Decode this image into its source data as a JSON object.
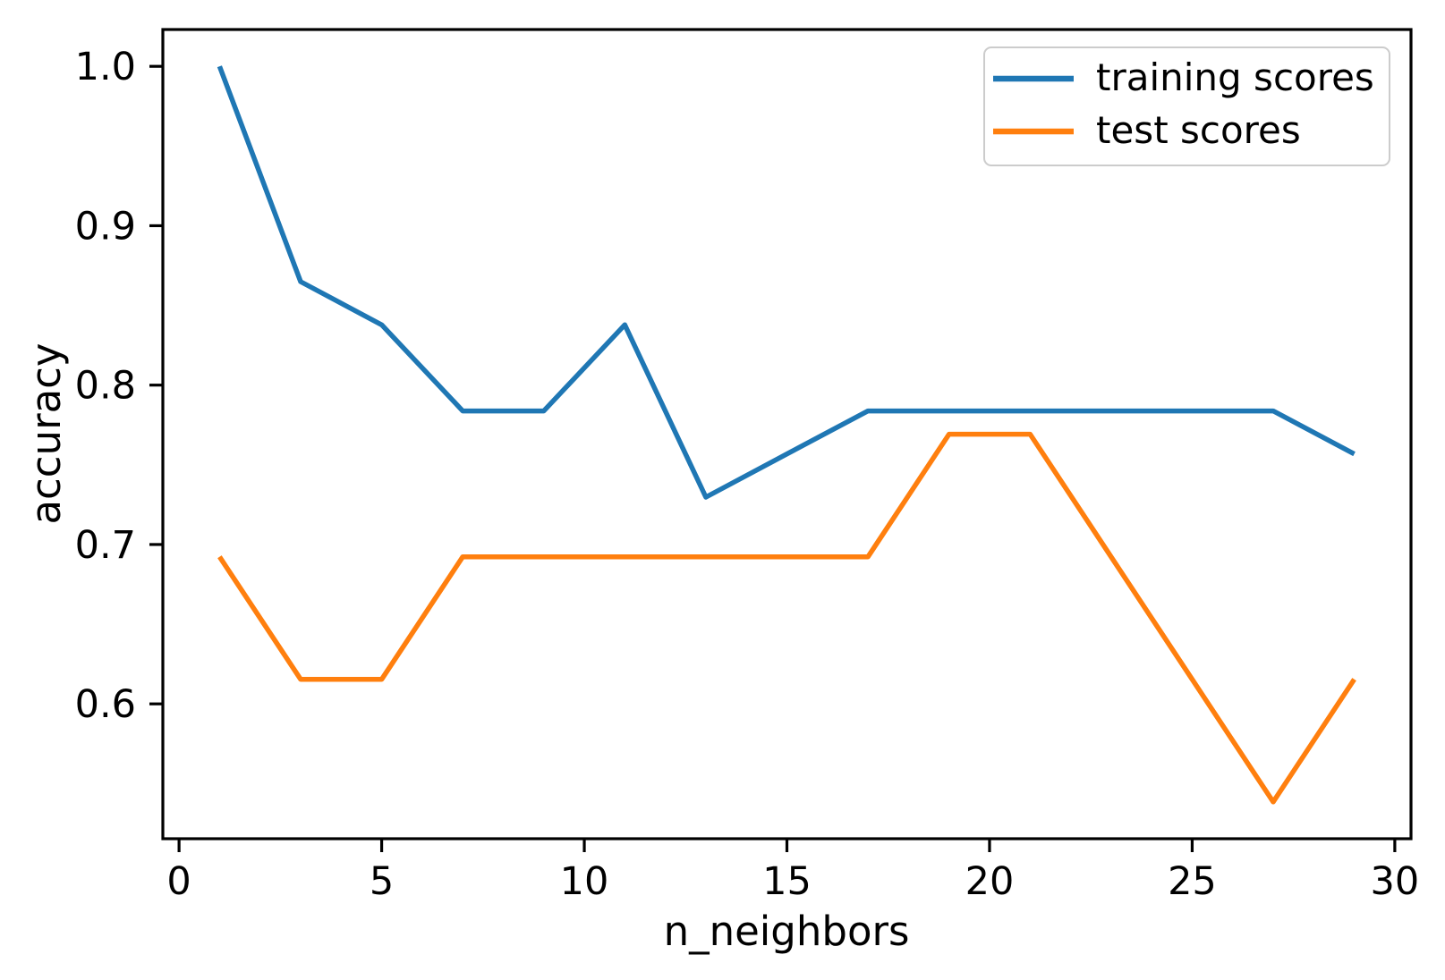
{
  "figure": {
    "background_color": "#ffffff",
    "spine_color": "#000000",
    "text_color": "#000000"
  },
  "chart_data": {
    "type": "line",
    "title": "",
    "xlabel": "n_neighbors",
    "ylabel": "accuracy",
    "x": [
      1,
      3,
      5,
      7,
      9,
      11,
      13,
      15,
      17,
      19,
      21,
      23,
      25,
      27,
      29
    ],
    "series": [
      {
        "name": "training scores",
        "color": "#1f77b4",
        "values": [
          1.0,
          0.8649,
          0.8378,
          0.7838,
          0.7838,
          0.8378,
          0.7297,
          0.7568,
          0.7838,
          0.7838,
          0.7838,
          0.7838,
          0.7838,
          0.7838,
          0.7568
        ]
      },
      {
        "name": "test scores",
        "color": "#ff7f0e",
        "values": [
          0.6923,
          0.6154,
          0.6154,
          0.6923,
          0.6923,
          0.6923,
          0.6923,
          0.6923,
          0.6923,
          0.7692,
          0.7692,
          0.6923,
          0.6154,
          0.5385,
          0.6154
        ]
      }
    ],
    "xlim": [
      -0.4,
      30.4
    ],
    "ylim": [
      0.5154,
      1.0231
    ],
    "xticks": [
      0,
      5,
      10,
      15,
      20,
      25,
      30
    ],
    "xtick_labels": [
      "0",
      "5",
      "10",
      "15",
      "20",
      "25",
      "30"
    ],
    "yticks": [
      0.6,
      0.7,
      0.8,
      0.9,
      1.0
    ],
    "ytick_labels": [
      "0.6",
      "0.7",
      "0.8",
      "0.9",
      "1.0"
    ],
    "grid": false,
    "legend": {
      "position": "upper right",
      "entries": [
        "training scores",
        "test scores"
      ],
      "border_color": "#cccccc",
      "background_color": "#ffffff"
    }
  }
}
